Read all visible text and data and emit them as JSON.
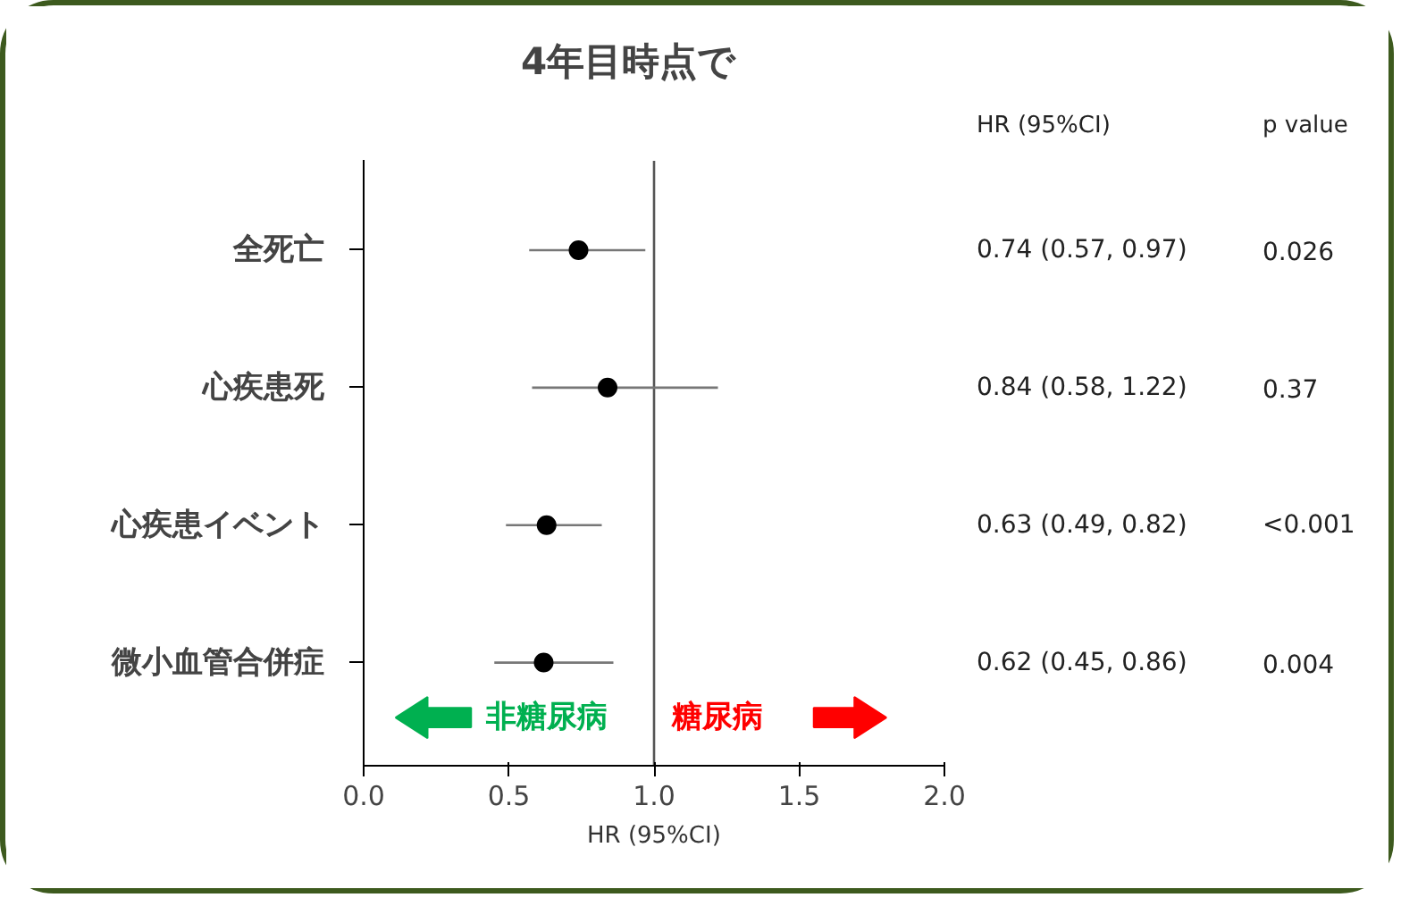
{
  "chart_data": {
    "type": "scatter",
    "orientation": "horizontal",
    "title": "4年目時点で",
    "xlabel": "HR (95%CI)",
    "categories": [
      "全死亡",
      "心疾患死",
      "心疾患イベント",
      "微小血管合併症"
    ],
    "series": [
      {
        "color": "#000000",
        "values": [
          0.74,
          0.84,
          0.63,
          0.62
        ],
        "errors": [
          [
            0.57,
            0.97
          ],
          [
            0.58,
            1.22
          ],
          [
            0.49,
            0.82
          ],
          [
            0.45,
            0.86
          ]
        ],
        "value_labels": [
          "0.74 (0.57, 0.97)",
          "0.84 (0.58, 1.22)",
          "0.63 (0.49, 0.82)",
          "0.62 (0.45, 0.86)"
        ]
      }
    ],
    "xlim": [
      0,
      2
    ],
    "xticks": [
      {
        "value": 0,
        "label": "0.0"
      },
      {
        "value": 0.5,
        "label": "0.5"
      },
      {
        "value": 1,
        "label": "1.0"
      },
      {
        "value": 1.5,
        "label": "1.5"
      },
      {
        "value": 2,
        "label": "2.0"
      }
    ],
    "ref_lines": [
      {
        "axis": "x",
        "value": 1,
        "color": "#555555"
      }
    ],
    "annotations": [
      "HR (95%CI)",
      "p value",
      "非糖尿病",
      "糖尿病",
      "0.026",
      "0.37",
      "<0.001",
      "0.004"
    ],
    "grid": false,
    "marker": "circle"
  }
}
